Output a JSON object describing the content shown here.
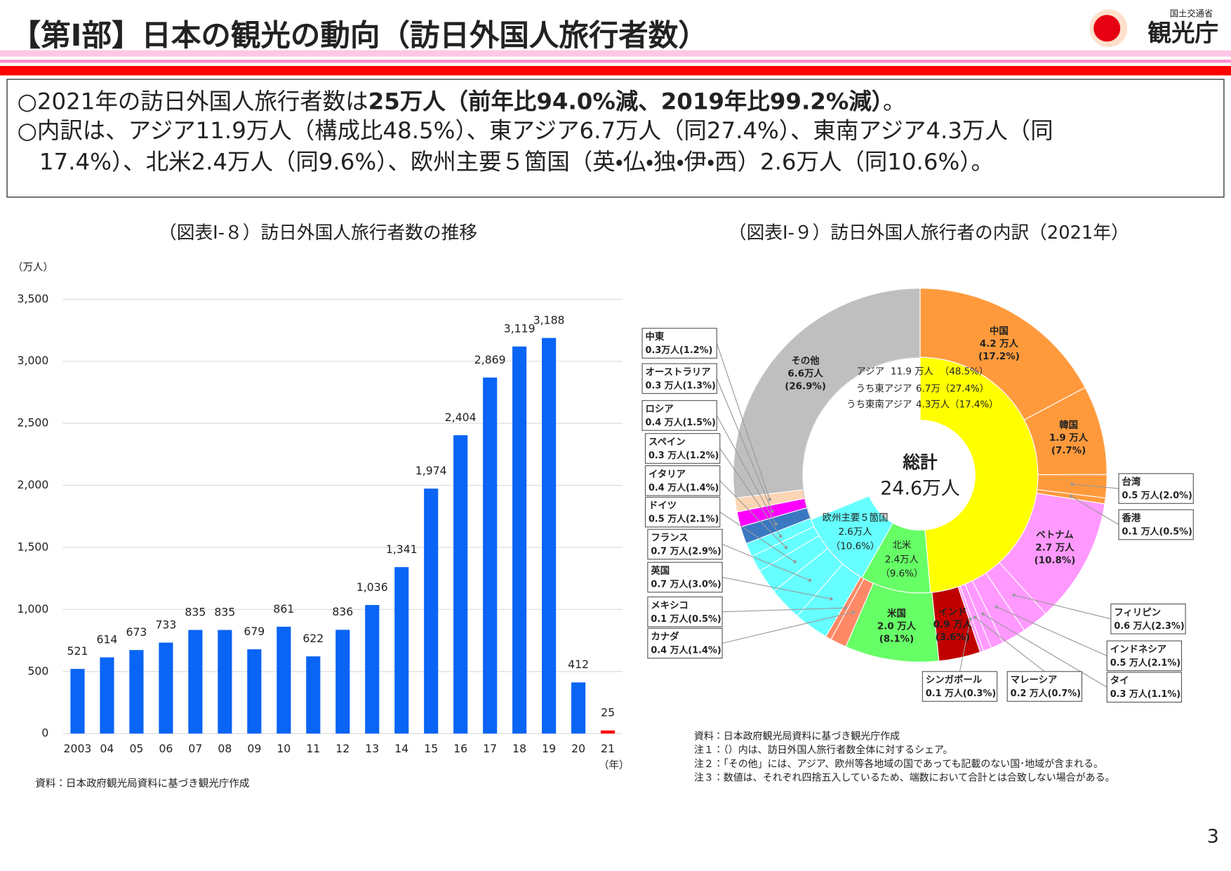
{
  "header": {
    "title": "【第Ⅰ部】日本の観光の動向（訪日外国人旅行者数）",
    "logo_org": "国土交通省",
    "logo_name": "観光庁"
  },
  "summary": [
    [
      {
        "text": "○2021年の訪日外国人旅行者数は",
        "bold": false
      },
      {
        "text": "25万人（前年比94.0%減、2019年比99.2%減）",
        "bold": true
      },
      {
        "text": "。",
        "bold": false
      }
    ],
    [
      {
        "text": "○内訳は、アジア11.9万人（構成比48.5%）、東アジア6.7万人（同27.4%）、東南アジア4.3万人（同",
        "bold": false
      }
    ],
    [
      {
        "text": "17.4%）、北米2.4万人（同9.6%）、欧州主要５箇国（英・仏・独・伊・西）2.6万人（同10.6%）。",
        "bold": false
      }
    ]
  ],
  "chart_data": [
    {
      "type": "bar",
      "title": "（図表Ⅰ-８）訪日外国人旅行者数の推移",
      "y_unit": "（万人）",
      "x_unit": "（年）",
      "categories": [
        "2003",
        "04",
        "05",
        "06",
        "07",
        "08",
        "09",
        "10",
        "11",
        "12",
        "13",
        "14",
        "15",
        "16",
        "17",
        "18",
        "19",
        "20",
        "21"
      ],
      "values": [
        521,
        614,
        673,
        733,
        835,
        835,
        679,
        861,
        622,
        836,
        1036,
        1341,
        1974,
        2404,
        2869,
        3119,
        3188,
        412,
        25
      ],
      "value_labels": [
        "521",
        "614",
        "673",
        "733",
        "835",
        "835",
        "679",
        "861",
        "622",
        "836",
        "1,036",
        "1,341",
        "1,974",
        "2,404",
        "2,869",
        "3,119",
        "3,188",
        "412",
        "25"
      ],
      "colors": [
        "#0a64f5",
        "#0a64f5",
        "#0a64f5",
        "#0a64f5",
        "#0a64f5",
        "#0a64f5",
        "#0a64f5",
        "#0a64f5",
        "#0a64f5",
        "#0a64f5",
        "#0a64f5",
        "#0a64f5",
        "#0a64f5",
        "#0a64f5",
        "#0a64f5",
        "#0a64f5",
        "#0a64f5",
        "#0a64f5",
        "#ff0000"
      ],
      "ylim": [
        0,
        3500
      ],
      "yticks": [
        0,
        500,
        {
          "value": 1000,
          "label": "1,000"
        },
        {
          "value": 1500,
          "label": "1,500"
        },
        {
          "value": 2000,
          "label": "2,000"
        },
        {
          "value": 2500,
          "label": "2,500"
        },
        {
          "value": 3000,
          "label": "3,000"
        },
        {
          "value": 3500,
          "label": "3,500"
        }
      ],
      "grid": true,
      "source": "資料：日本政府観光局資料に基づき観光庁作成"
    },
    {
      "type": "donut",
      "title": "（図表Ⅰ-９）訪日外国人旅行者の内訳（2021年）",
      "total_label": "総計",
      "total": "24.6万人",
      "outer": [
        {
          "name": "中国",
          "value": 17.2,
          "amount_label": "4.2 万人",
          "value_label": "(17.2%)",
          "color": "#ff9a3c"
        },
        {
          "name": "韓国",
          "value": 7.7,
          "amount_label": "1.9 万人",
          "value_label": "(7.7%)",
          "color": "#ff9a3c"
        },
        {
          "name": "台湾",
          "value": 2.0,
          "amount_label": "0.5 万人",
          "value_label": "(2.0%)",
          "color": "#ff9a3c"
        },
        {
          "name": "香港",
          "value": 0.5,
          "amount_label": "0.1 万人",
          "value_label": "(0.5%)",
          "color": "#ff9a3c"
        },
        {
          "name": "ベトナム",
          "value": 10.8,
          "amount_label": "2.7 万人",
          "value_label": "(10.8%)",
          "color": "#ff99ff"
        },
        {
          "name": "フィリピン",
          "value": 2.3,
          "amount_label": "0.6 万人",
          "value_label": "(2.3%)",
          "color": "#ff99ff"
        },
        {
          "name": "インドネシア",
          "value": 2.1,
          "amount_label": "0.5 万人",
          "value_label": "(2.1%)",
          "color": "#ff99ff"
        },
        {
          "name": "タイ",
          "value": 1.1,
          "amount_label": "0.3 万人",
          "value_label": "(1.1%)",
          "color": "#ff99ff"
        },
        {
          "name": "マレーシア",
          "value": 0.7,
          "amount_label": "0.2 万人",
          "value_label": "(0.7%)",
          "color": "#ff99ff"
        },
        {
          "name": "シンガポール",
          "value": 0.3,
          "amount_label": "0.1 万人",
          "value_label": "(0.3%)",
          "color": "#ff99ff"
        },
        {
          "name": "インド",
          "value": 3.6,
          "amount_label": "0.9 万人",
          "value_label": "(3.6%)",
          "color": "#c00000"
        },
        {
          "name": "米国",
          "value": 8.1,
          "amount_label": "2.0 万人",
          "value_label": "(8.1%)",
          "color": "#66ff66"
        },
        {
          "name": "カナダ",
          "value": 1.4,
          "amount_label": "0.4 万人",
          "value_label": "(1.4%)",
          "color": "#ff8866"
        },
        {
          "name": "メキシコ",
          "value": 0.5,
          "amount_label": "0.1 万人",
          "value_label": "(0.5%)",
          "color": "#ff8866"
        },
        {
          "name": "英国",
          "value": 3.0,
          "amount_label": "0.7 万人",
          "value_label": "(3.0%)",
          "color": "#66ffff"
        },
        {
          "name": "フランス",
          "value": 2.9,
          "amount_label": "0.7 万人",
          "value_label": "(2.9%)",
          "color": "#66ffff"
        },
        {
          "name": "ドイツ",
          "value": 2.1,
          "amount_label": "0.5 万人",
          "value_label": "(2.1%)",
          "color": "#66ffff"
        },
        {
          "name": "イタリア",
          "value": 1.4,
          "amount_label": "0.4 万人",
          "value_label": "(1.4%)",
          "color": "#66ffff"
        },
        {
          "name": "スペイン",
          "value": 1.2,
          "amount_label": "0.3 万人",
          "value_label": "(1.2%)",
          "color": "#66ffff"
        },
        {
          "name": "ロシア",
          "value": 1.5,
          "amount_label": "0.4 万人",
          "value_label": "(1.5%)",
          "color": "#3a78c2"
        },
        {
          "name": "オーストラリア",
          "value": 1.3,
          "amount_label": "0.3 万人",
          "value_label": "(1.3%)",
          "color": "#ff00ff"
        },
        {
          "name": "中東",
          "value": 1.2,
          "amount_label": "0.3万人",
          "value_label": "(1.2%)",
          "color": "#fcd5b4"
        },
        {
          "name": "その他",
          "value": 26.9,
          "amount_label": "6.6万人",
          "value_label": "(26.9%)",
          "color": "#bfbfbf"
        }
      ],
      "inner": [
        {
          "name": "アジア",
          "value": 48.5,
          "amount_label": "11.9 万人",
          "value_label": "（48.5%）",
          "color": "#ffff00"
        },
        {
          "name": "北米",
          "value": 9.6,
          "amount_label": "2.4万人",
          "value_label": "（9.6%）",
          "color": "#66ff66"
        },
        {
          "name": "欧州主要５箇国",
          "value": 10.6,
          "amount_label": "2.6万人",
          "value_label": "（10.6%）",
          "color": "#66ffff"
        }
      ],
      "asia_breakdown": [
        {
          "name": "うち東アジア",
          "amount_label": "6.7万",
          "value_label": "（27.4%）"
        },
        {
          "name": "うち東南アジア",
          "amount_label": "4.3万人",
          "value_label": "（17.4%）"
        }
      ],
      "notes": [
        "資料：日本政府観光局資料に基づき観光庁作成",
        "注１：（）内は、訪日外国人旅行者数全体に対するシェア。",
        "注２：「その他」には、アジア、欧州等各地域の国であっても記載のない国･地域が含まれる。",
        "注３：数値は、それぞれ四捨五入しているため、端数において合計とは合致しない場合がある。"
      ]
    }
  ],
  "page_number": "3"
}
